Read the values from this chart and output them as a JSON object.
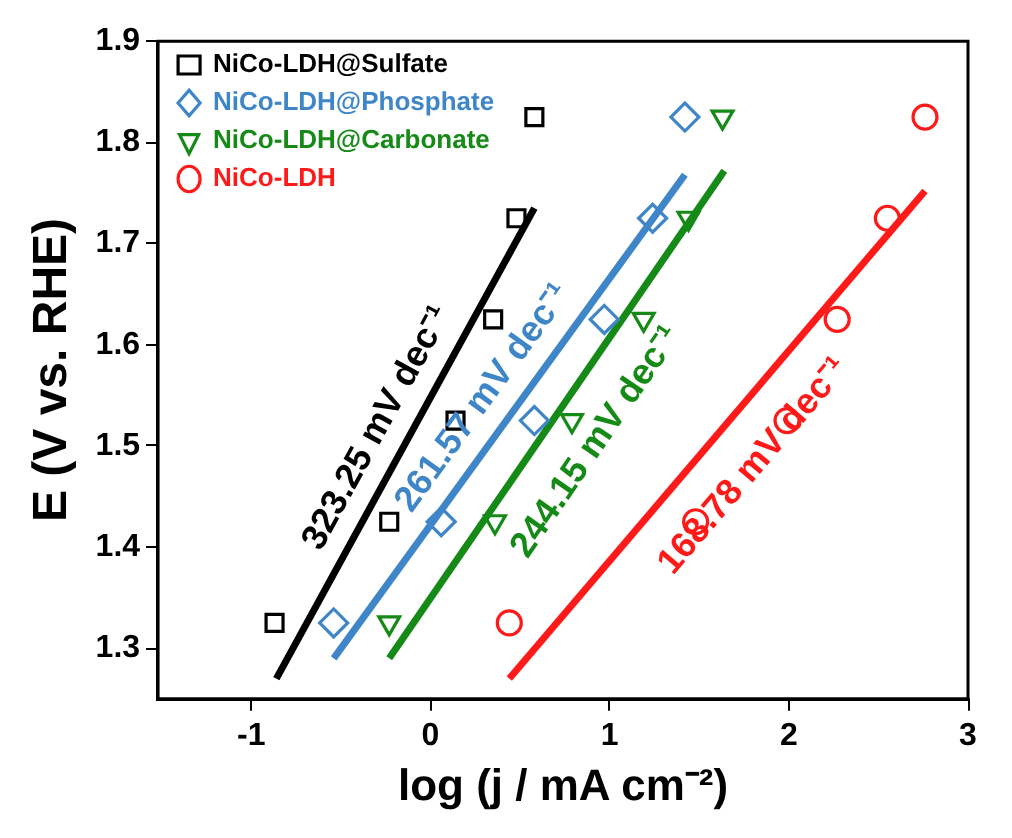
{
  "chart_data": {
    "type": "scatter",
    "xlabel": "log (j / mA cm⁻²)",
    "ylabel": "E (V vs. RHE)",
    "xlim": [
      -1.52,
      3
    ],
    "ylim": [
      1.25,
      1.9
    ],
    "xticks": [
      -1,
      0,
      1,
      2,
      3
    ],
    "yticks": [
      1.3,
      1.4,
      1.5,
      1.6,
      1.7,
      1.8,
      1.9
    ],
    "grid": false,
    "legend": "top left",
    "series": [
      {
        "name": "NiCo-LDH@Sulfate",
        "color": "#000000",
        "marker": "square",
        "x": [
          -0.87,
          -0.23,
          0.14,
          0.35,
          0.48,
          0.58
        ],
        "values": [
          1.325,
          1.425,
          1.525,
          1.625,
          1.725,
          1.825
        ]
      },
      {
        "name": "NiCo-LDH@Phosphate",
        "color": "#3f86c8",
        "marker": "diamond",
        "x": [
          -0.54,
          0.06,
          0.58,
          0.97,
          1.24,
          1.42
        ],
        "values": [
          1.325,
          1.425,
          1.525,
          1.625,
          1.725,
          1.825
        ]
      },
      {
        "name": "NiCo-LDH@Carbonate",
        "color": "#168a16",
        "marker": "triangle",
        "x": [
          -0.23,
          0.36,
          0.79,
          1.19,
          1.44,
          1.63
        ],
        "values": [
          1.325,
          1.425,
          1.525,
          1.625,
          1.725,
          1.825
        ]
      },
      {
        "name": "NiCo-LDH",
        "color": "#ff1a1a",
        "marker": "circle",
        "x": [
          0.44,
          1.48,
          1.99,
          2.27,
          2.55,
          2.76
        ],
        "values": [
          1.325,
          1.425,
          1.525,
          1.625,
          1.725,
          1.825
        ]
      },
      {
        "type": "line",
        "color": "#000000",
        "marker": "none",
        "x": [
          -0.86,
          0.58
        ],
        "values": [
          1.27,
          1.735
        ]
      },
      {
        "type": "line",
        "color": "#3f86c8",
        "marker": "none",
        "x": [
          -0.54,
          1.42
        ],
        "values": [
          1.29,
          1.768
        ]
      },
      {
        "type": "line",
        "color": "#168a16",
        "marker": "none",
        "x": [
          -0.23,
          1.64
        ],
        "values": [
          1.29,
          1.772
        ]
      },
      {
        "type": "line",
        "color": "#ff1a1a",
        "marker": "none",
        "x": [
          0.44,
          2.76
        ],
        "values": [
          1.27,
          1.752
        ]
      }
    ],
    "annotations": [
      "323.25 mV dec⁻¹",
      "261.57 mV dec⁻¹",
      "244.15 mV dec⁻¹",
      "168.78 mV dec⁻¹"
    ]
  }
}
